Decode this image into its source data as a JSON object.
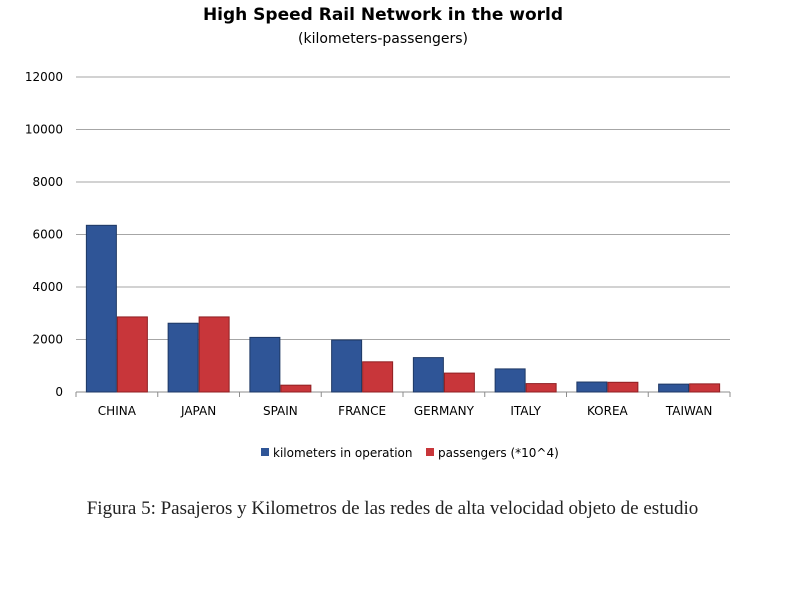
{
  "caption": "Figura 5: Pasajeros y Kilometros de las redes de alta velocidad objeto de estudio",
  "colors": {
    "kilometers": "#2f5597",
    "passengers": "#c8363a",
    "grid": "#a6a6a6"
  },
  "chart_data": {
    "type": "bar",
    "title": "High Speed Rail Network in the world",
    "subtitle": "(kilometers-passengers)",
    "categories": [
      "CHINA",
      "JAPAN",
      "SPAIN",
      "FRANCE",
      "GERMANY",
      "ITALY",
      "KOREA",
      "TAIWAN"
    ],
    "series": [
      {
        "name": "kilometers in operation",
        "values": [
          6350,
          2620,
          2080,
          1980,
          1310,
          880,
          380,
          300
        ]
      },
      {
        "name": "passengers (*10^4)",
        "values": [
          2860,
          2860,
          260,
          1150,
          720,
          320,
          370,
          310
        ]
      }
    ],
    "ylim": [
      0,
      12000
    ],
    "yticks": [
      "0",
      "2000",
      "4000",
      "6000",
      "8000",
      "10000",
      "12000"
    ],
    "grid": true,
    "legend": "bottom"
  }
}
